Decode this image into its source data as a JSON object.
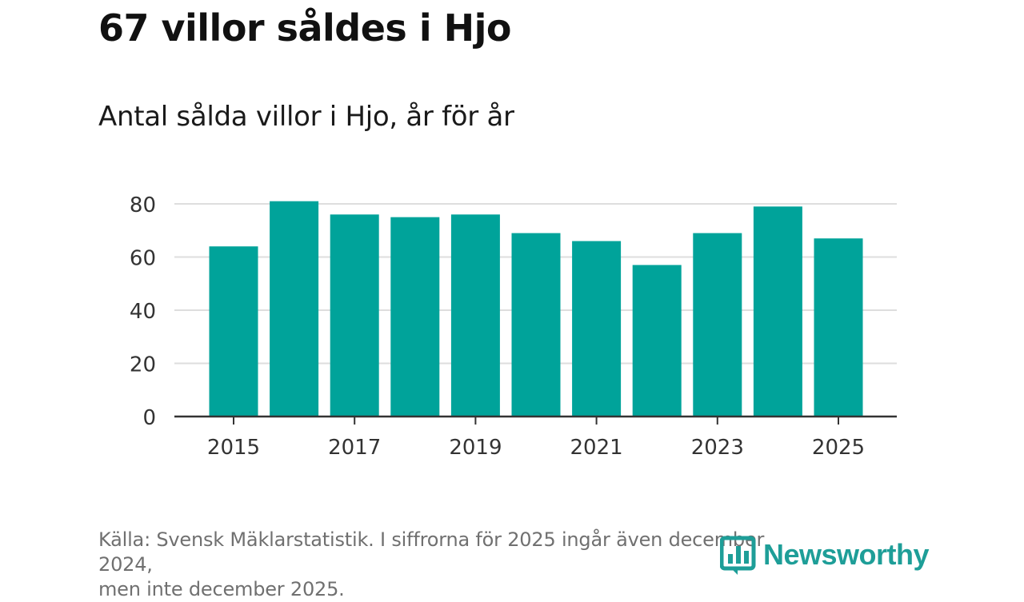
{
  "chart_data": {
    "type": "bar",
    "title": "67 villor såldes i Hjo",
    "subtitle": "Antal sålda villor i Hjo, år för år",
    "categories": [
      "2015",
      "2016",
      "2017",
      "2018",
      "2019",
      "2020",
      "2021",
      "2022",
      "2023",
      "2024",
      "2025"
    ],
    "values": [
      64,
      81,
      76,
      75,
      76,
      69,
      66,
      57,
      69,
      79,
      67
    ],
    "x_tick_labels": [
      "2015",
      "2017",
      "2019",
      "2021",
      "2023",
      "2025"
    ],
    "y_ticks": [
      0,
      20,
      40,
      60,
      80
    ],
    "ylim": [
      0,
      80
    ],
    "xlabel": "",
    "ylabel": "",
    "grid": true,
    "bar_color": "#00a39a"
  },
  "footer": {
    "source_line1": "Källa: Svensk Mäklarstatistik. I siffrorna för 2025 ingår även december 2024,",
    "source_line2": "men inte december 2025."
  },
  "logo": {
    "text": "Newsworthy",
    "icon": "bar-chart-logo-icon",
    "color": "#1e9e98"
  }
}
